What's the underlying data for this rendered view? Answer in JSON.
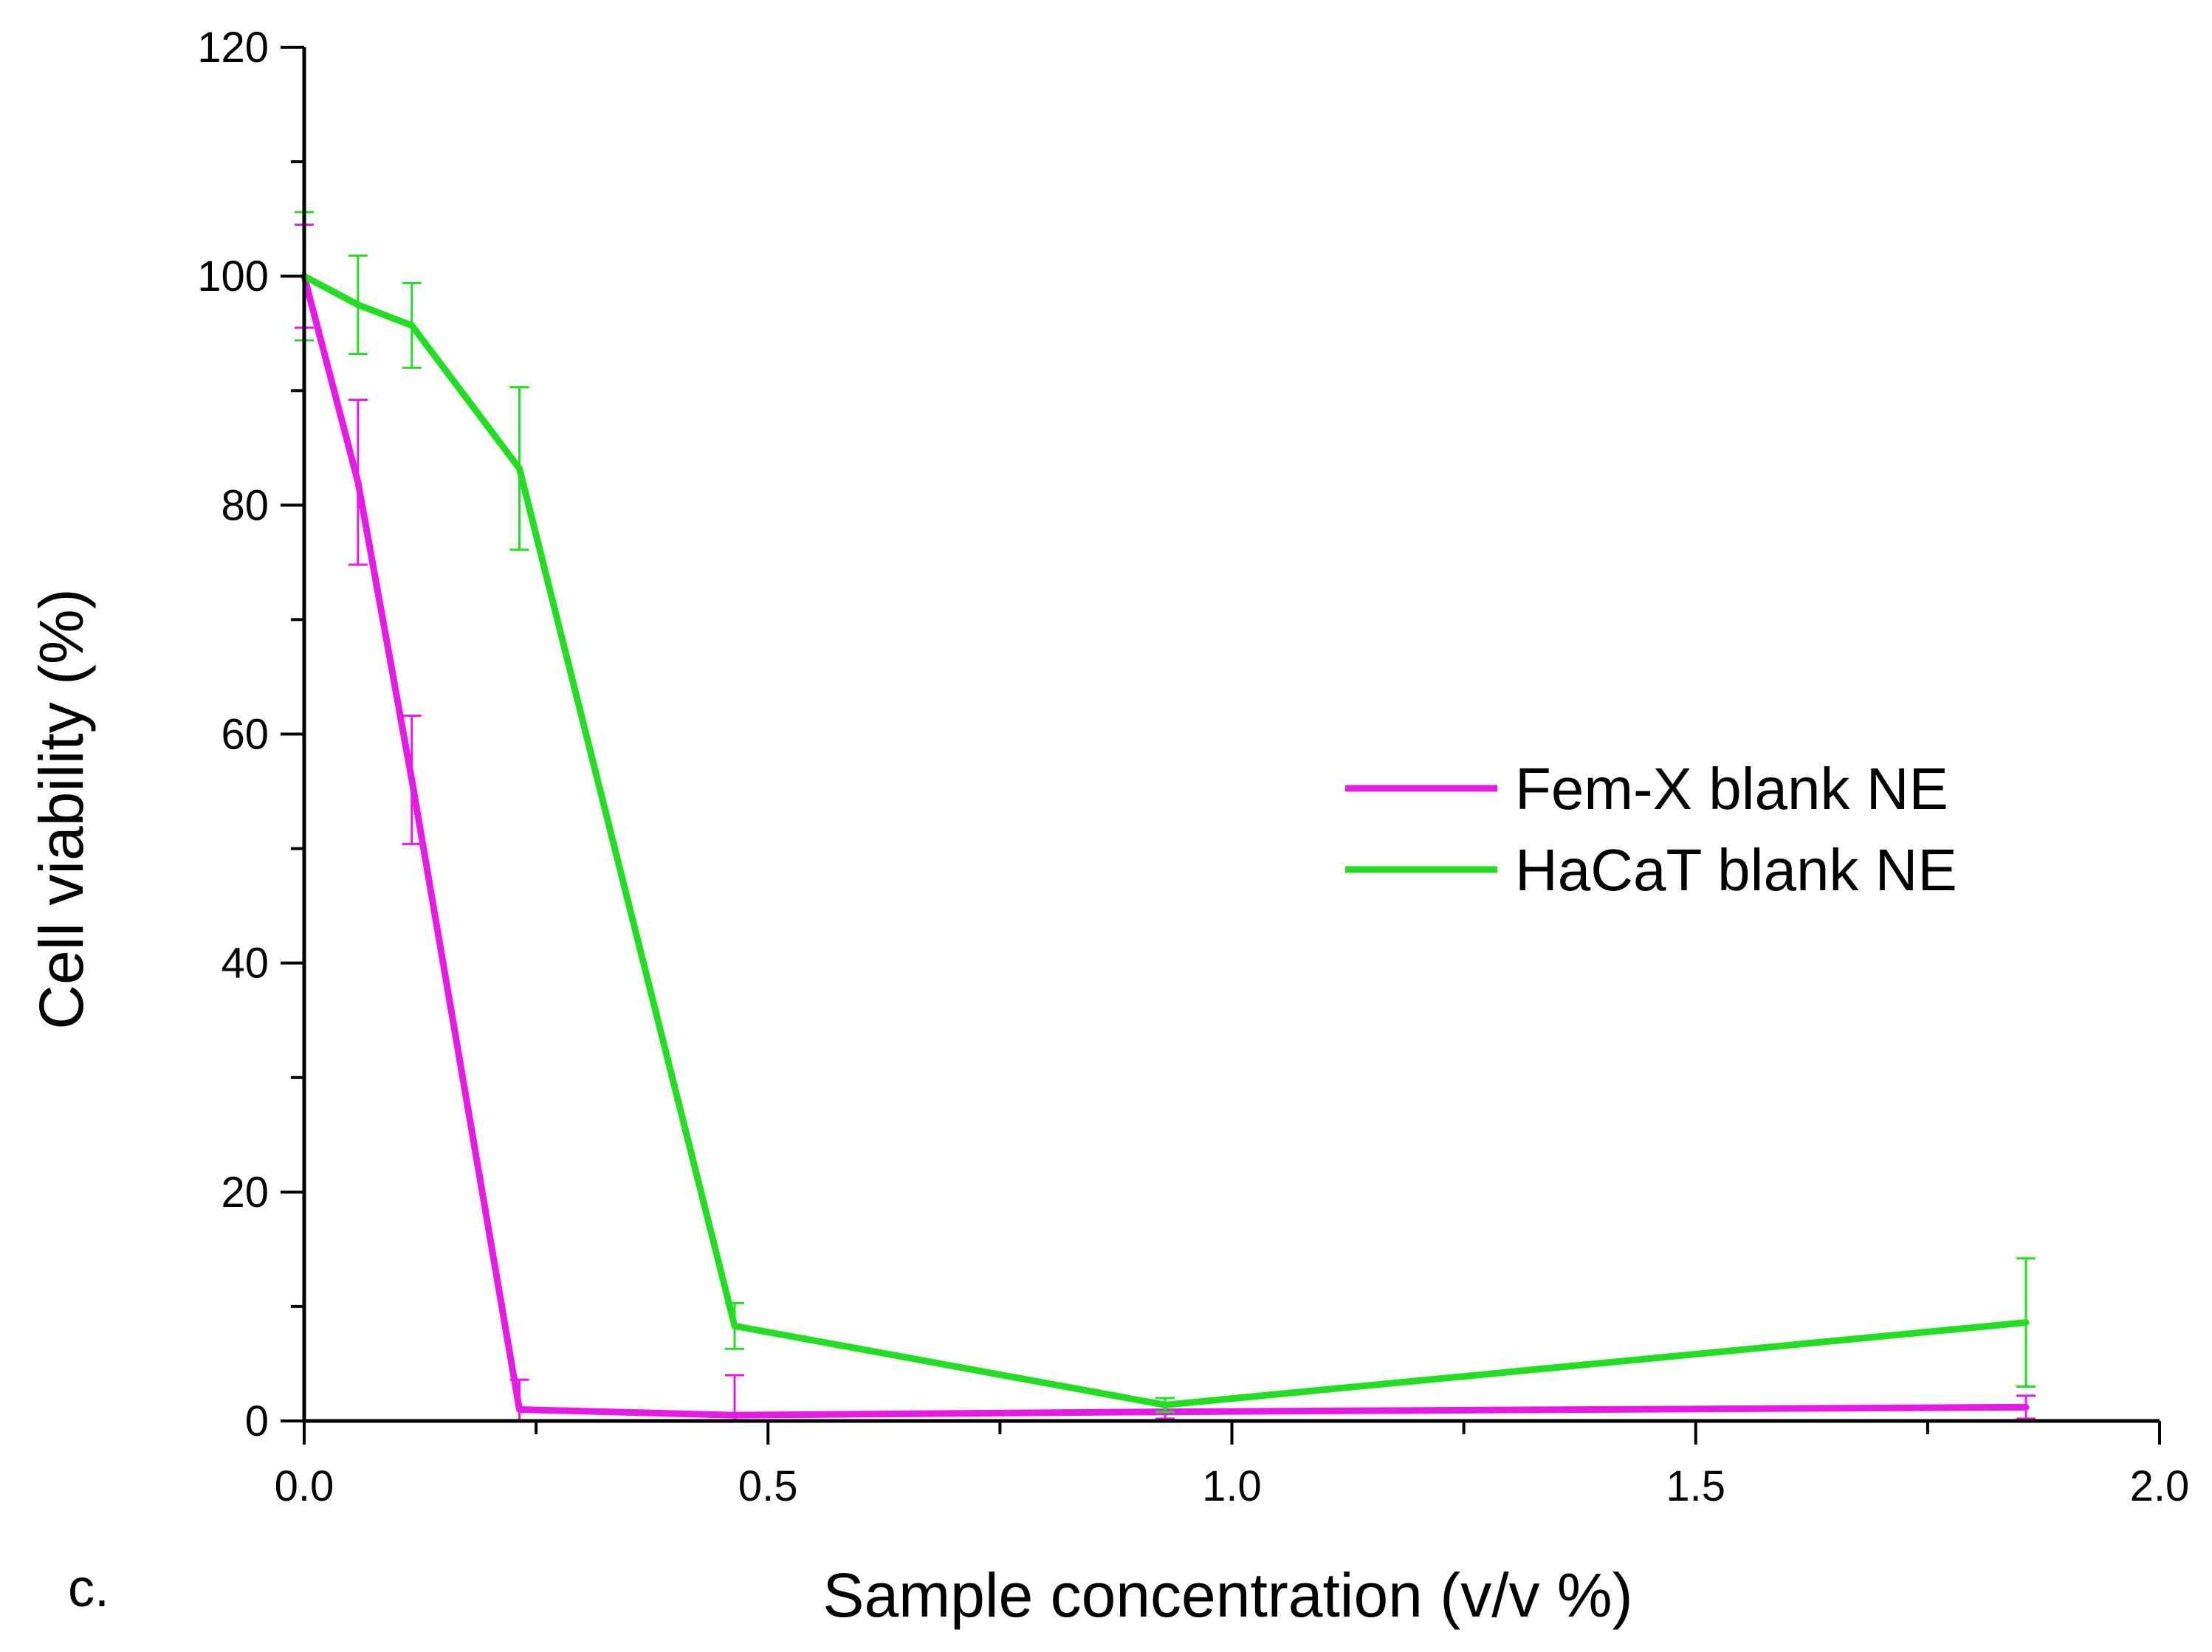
{
  "chart_data": {
    "type": "line",
    "title": "",
    "xlabel": "Sample concentration (v/v %)",
    "ylabel": "Cell viability (%)",
    "panel_label": "c.",
    "xlim": [
      0,
      2.0
    ],
    "ylim": [
      0,
      120
    ],
    "x_ticks": [
      0.0,
      0.5,
      1.0,
      1.5,
      2.0
    ],
    "x_tick_labels": [
      "0.0",
      "0.5",
      "1.0",
      "1.5",
      "2.0"
    ],
    "y_ticks": [
      0,
      20,
      40,
      60,
      80,
      100,
      120
    ],
    "y_tick_labels": [
      "0",
      "20",
      "40",
      "60",
      "80",
      "100",
      "120"
    ],
    "grid": false,
    "legend_position": "center-right",
    "series": [
      {
        "name": "Fem-X blank NE",
        "color": "#e619e6",
        "x": [
          0.0,
          0.058,
          0.116,
          0.232,
          0.464,
          0.928,
          1.856
        ],
        "y": [
          100,
          82,
          56,
          1.0,
          0.5,
          0.8,
          1.2
        ],
        "error": [
          4.5,
          7.2,
          5.6,
          2.6,
          3.5,
          0.6,
          1.0
        ]
      },
      {
        "name": "HaCaT blank NE",
        "color": "#22dd22",
        "x": [
          0.0,
          0.058,
          0.116,
          0.232,
          0.464,
          0.928,
          1.856
        ],
        "y": [
          100,
          97.5,
          95.7,
          83.2,
          8.3,
          1.4,
          8.6
        ],
        "error": [
          5.6,
          4.3,
          3.7,
          7.1,
          2.0,
          0.6,
          5.6
        ]
      }
    ]
  }
}
